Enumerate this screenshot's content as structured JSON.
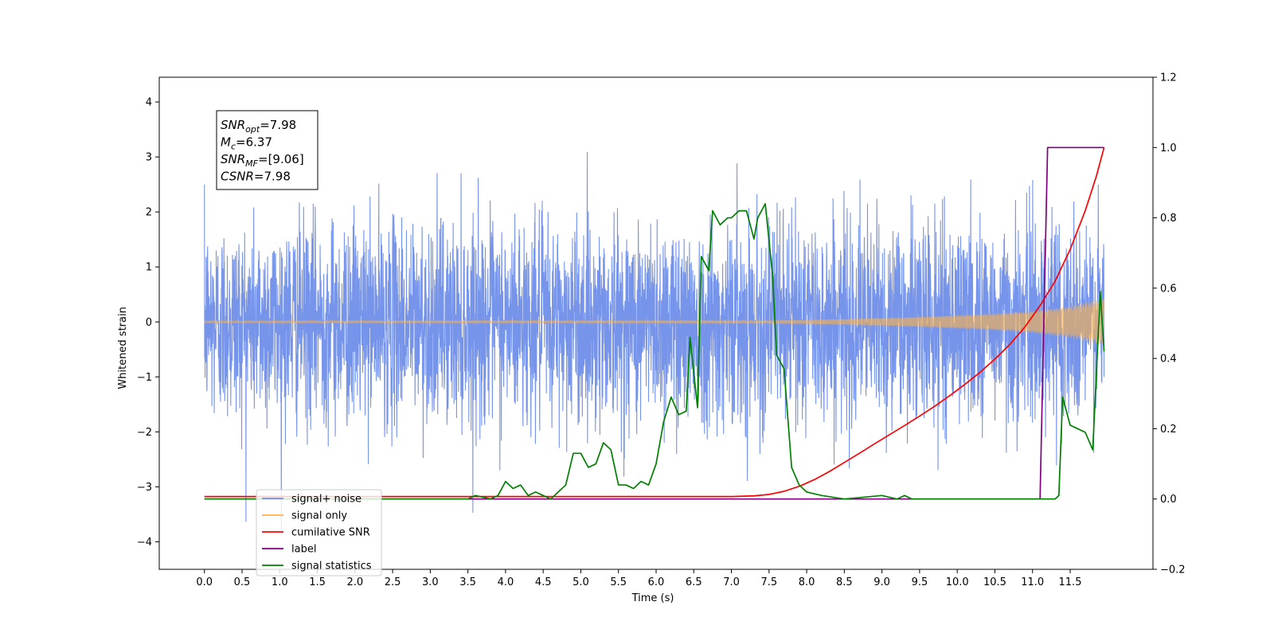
{
  "chart_data": {
    "type": "line",
    "title": "",
    "xlabel": "Time (s)",
    "ylabel": "Whitened strain",
    "y2label": "",
    "xlim": [
      -0.6,
      12.6
    ],
    "ylim": [
      -4.5,
      4.45
    ],
    "y2lim": [
      -0.2,
      1.2
    ],
    "xticks": [
      "0.0",
      "0.5",
      "1.0",
      "1.5",
      "2.0",
      "2.5",
      "3.0",
      "3.5",
      "4.0",
      "4.5",
      "5.0",
      "5.5",
      "6.0",
      "6.5",
      "7.0",
      "7.5",
      "8.0",
      "8.5",
      "9.0",
      "9.5",
      "10.0",
      "10.5",
      "11.0",
      "11.5"
    ],
    "yticks": [
      "4",
      "3",
      "2",
      "1",
      "0",
      "−1",
      "−2",
      "−3",
      "−4"
    ],
    "y2ticks": [
      "1.2",
      "1.0",
      "0.8",
      "0.6",
      "0.4",
      "0.2",
      "0.0",
      "−0.2"
    ],
    "grid": false,
    "legend_position": "lower-left",
    "annotation": {
      "lines": [
        {
          "var": "SNR",
          "sub": "opt",
          "value": "=7.98"
        },
        {
          "var": "M",
          "sub": "c",
          "value": "=6.37"
        },
        {
          "var": "SNR",
          "sub": "MF",
          "value": "=[9.06]"
        },
        {
          "var": "CSNR",
          "sub": "",
          "value": "=7.98"
        }
      ]
    },
    "series": [
      {
        "name": "signal+ noise",
        "color": "#6f8ee8",
        "axis": "left",
        "style": "noise",
        "x_range": [
          0.0,
          11.95
        ],
        "std": 0.9
      },
      {
        "name": "signal only",
        "color": "#ffb347",
        "axis": "left",
        "style": "chirp",
        "x_range": [
          0.0,
          11.95
        ],
        "envelope": {
          "x": [
            0,
            7.5,
            8.5,
            9.5,
            10.5,
            11.0,
            11.5,
            11.95
          ],
          "y": [
            0.02,
            0.02,
            0.05,
            0.09,
            0.15,
            0.2,
            0.28,
            0.43
          ]
        }
      },
      {
        "name": "cumilative SNR",
        "color": "#ff0000",
        "axis": "right",
        "x": [
          0,
          7.0,
          7.3,
          7.5,
          7.7,
          7.9,
          8.1,
          8.3,
          8.5,
          8.7,
          8.9,
          9.1,
          9.3,
          9.5,
          9.7,
          9.9,
          10.1,
          10.3,
          10.5,
          10.7,
          10.9,
          11.1,
          11.3,
          11.5,
          11.7,
          11.85,
          11.95
        ],
        "y": [
          0.007,
          0.007,
          0.009,
          0.013,
          0.022,
          0.036,
          0.055,
          0.078,
          0.104,
          0.13,
          0.157,
          0.183,
          0.209,
          0.236,
          0.264,
          0.294,
          0.326,
          0.36,
          0.398,
          0.44,
          0.49,
          0.55,
          0.62,
          0.71,
          0.82,
          0.92,
          1.0
        ]
      },
      {
        "name": "label",
        "color": "#800080",
        "axis": "right",
        "x": [
          0,
          11.1,
          11.2,
          11.95
        ],
        "y": [
          0.0,
          0.0,
          1.0,
          1.0
        ]
      },
      {
        "name": "signal statistics",
        "color": "#008000",
        "axis": "right",
        "x": [
          0,
          3.5,
          3.6,
          3.8,
          3.9,
          4.0,
          4.1,
          4.2,
          4.3,
          4.4,
          4.5,
          4.6,
          4.7,
          4.8,
          4.9,
          5.0,
          5.1,
          5.2,
          5.3,
          5.4,
          5.5,
          5.6,
          5.7,
          5.8,
          5.9,
          6.0,
          6.1,
          6.2,
          6.3,
          6.4,
          6.45,
          6.55,
          6.6,
          6.7,
          6.75,
          6.85,
          6.95,
          7.0,
          7.1,
          7.2,
          7.3,
          7.35,
          7.45,
          7.55,
          7.6,
          7.7,
          7.8,
          7.9,
          8.0,
          8.2,
          8.5,
          9.0,
          9.2,
          9.3,
          9.4,
          11.3,
          11.35,
          11.4,
          11.5,
          11.6,
          11.7,
          11.8,
          11.9,
          11.95
        ],
        "y": [
          0.0,
          0.0,
          0.01,
          0.0,
          0.01,
          0.05,
          0.03,
          0.04,
          0.01,
          0.02,
          0.01,
          0.0,
          0.02,
          0.04,
          0.13,
          0.13,
          0.09,
          0.1,
          0.16,
          0.14,
          0.04,
          0.04,
          0.03,
          0.05,
          0.04,
          0.1,
          0.22,
          0.29,
          0.24,
          0.25,
          0.46,
          0.26,
          0.69,
          0.65,
          0.82,
          0.78,
          0.8,
          0.8,
          0.82,
          0.82,
          0.74,
          0.8,
          0.84,
          0.63,
          0.41,
          0.37,
          0.09,
          0.04,
          0.02,
          0.01,
          0.0,
          0.01,
          0.0,
          0.01,
          0.0,
          0.0,
          0.01,
          0.29,
          0.21,
          0.2,
          0.19,
          0.14,
          0.59,
          0.42
        ]
      }
    ]
  }
}
